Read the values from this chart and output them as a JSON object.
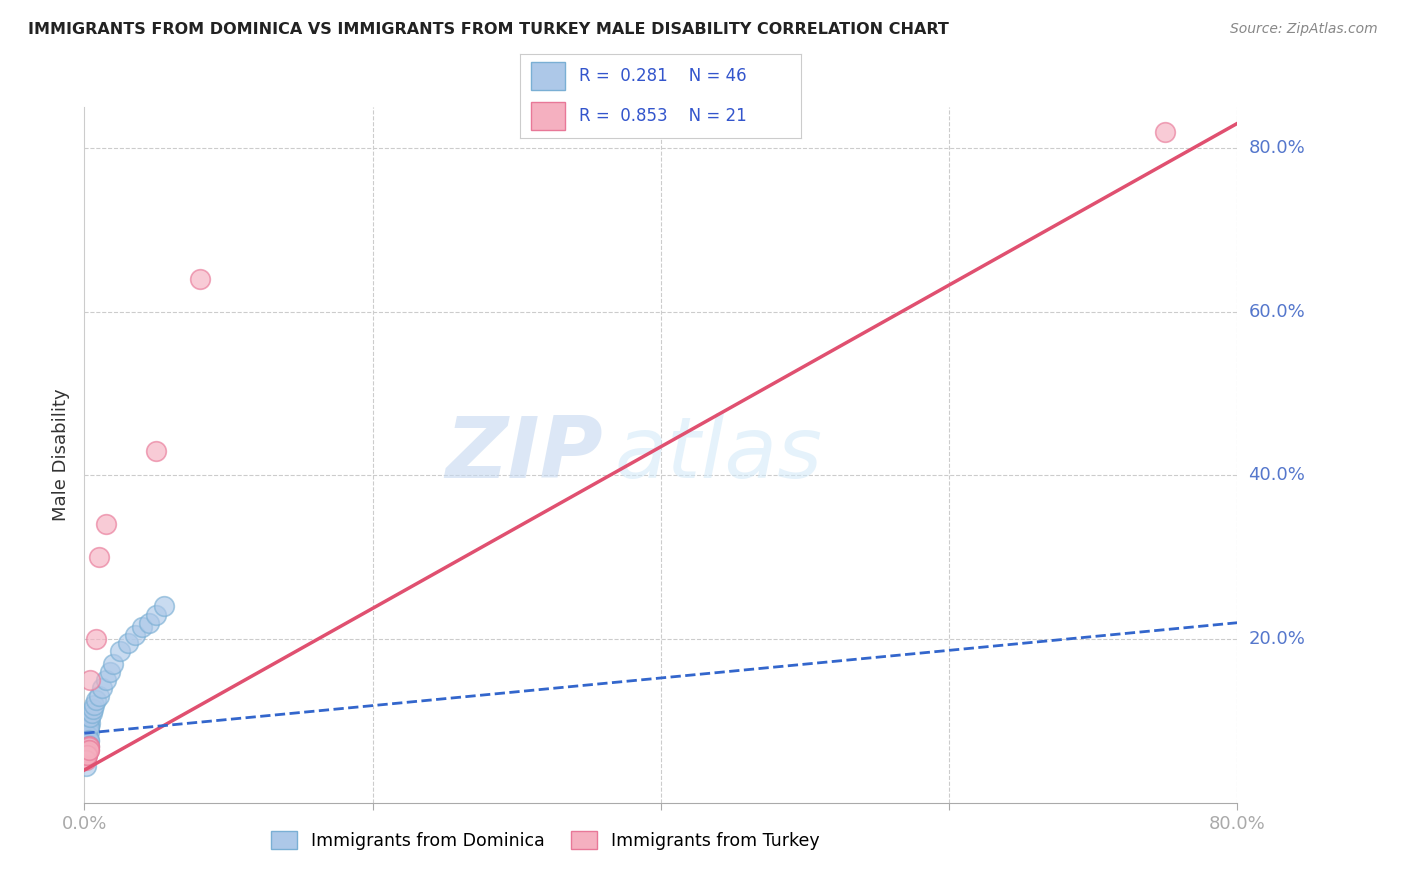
{
  "title": "IMMIGRANTS FROM DOMINICA VS IMMIGRANTS FROM TURKEY MALE DISABILITY CORRELATION CHART",
  "source": "Source: ZipAtlas.com",
  "ylabel": "Male Disability",
  "xlim": [
    0.0,
    0.8
  ],
  "ylim": [
    0.0,
    0.85
  ],
  "xtick_vals": [
    0.0,
    0.2,
    0.4,
    0.6,
    0.8
  ],
  "xtick_labels": [
    "0.0%",
    "",
    "",
    "",
    "80.0%"
  ],
  "ytick_vals": [
    0.2,
    0.4,
    0.6,
    0.8
  ],
  "ytick_labels": [
    "20.0%",
    "40.0%",
    "60.0%",
    "80.0%"
  ],
  "dominica_color": "#adc8e8",
  "dominica_edge": "#7aafd4",
  "turkey_color": "#f5b0c0",
  "turkey_edge": "#e87898",
  "dominica_line_color": "#3366cc",
  "turkey_line_color": "#e05070",
  "R_dominica": 0.281,
  "N_dominica": 46,
  "R_turkey": 0.853,
  "N_turkey": 21,
  "legend_label_dominica": "Immigrants from Dominica",
  "legend_label_turkey": "Immigrants from Turkey",
  "watermark_zip": "ZIP",
  "watermark_atlas": "atlas",
  "grid_color": "#cccccc",
  "background_color": "#ffffff",
  "dominica_x": [
    0.001,
    0.002,
    0.003,
    0.001,
    0.002,
    0.003,
    0.001,
    0.002,
    0.001,
    0.002,
    0.003,
    0.001,
    0.004,
    0.002,
    0.003,
    0.001,
    0.002,
    0.003,
    0.001,
    0.002,
    0.003,
    0.001,
    0.002,
    0.003,
    0.001,
    0.002,
    0.003,
    0.004,
    0.005,
    0.006,
    0.007,
    0.008,
    0.01,
    0.012,
    0.015,
    0.018,
    0.02,
    0.025,
    0.03,
    0.035,
    0.04,
    0.045,
    0.05,
    0.055,
    0.001,
    0.001
  ],
  "dominica_y": [
    0.08,
    0.09,
    0.095,
    0.085,
    0.07,
    0.1,
    0.075,
    0.088,
    0.078,
    0.082,
    0.092,
    0.072,
    0.098,
    0.076,
    0.086,
    0.073,
    0.083,
    0.093,
    0.065,
    0.07,
    0.075,
    0.068,
    0.072,
    0.077,
    0.06,
    0.065,
    0.07,
    0.105,
    0.11,
    0.115,
    0.12,
    0.125,
    0.13,
    0.14,
    0.15,
    0.16,
    0.17,
    0.185,
    0.195,
    0.205,
    0.215,
    0.22,
    0.23,
    0.24,
    0.055,
    0.045
  ],
  "turkey_x": [
    0.001,
    0.002,
    0.003,
    0.001,
    0.002,
    0.003,
    0.001,
    0.002,
    0.001,
    0.002,
    0.003,
    0.001,
    0.002,
    0.003,
    0.004,
    0.008,
    0.01,
    0.015,
    0.05,
    0.08,
    0.75
  ],
  "turkey_y": [
    0.06,
    0.065,
    0.07,
    0.055,
    0.06,
    0.065,
    0.055,
    0.06,
    0.058,
    0.062,
    0.068,
    0.052,
    0.058,
    0.065,
    0.15,
    0.2,
    0.3,
    0.34,
    0.43,
    0.64,
    0.82
  ],
  "dom_line_x0": 0.0,
  "dom_line_y0": 0.085,
  "dom_line_x1": 0.8,
  "dom_line_y1": 0.22,
  "tur_line_x0": 0.0,
  "tur_line_y0": 0.04,
  "tur_line_x1": 0.8,
  "tur_line_y1": 0.83
}
